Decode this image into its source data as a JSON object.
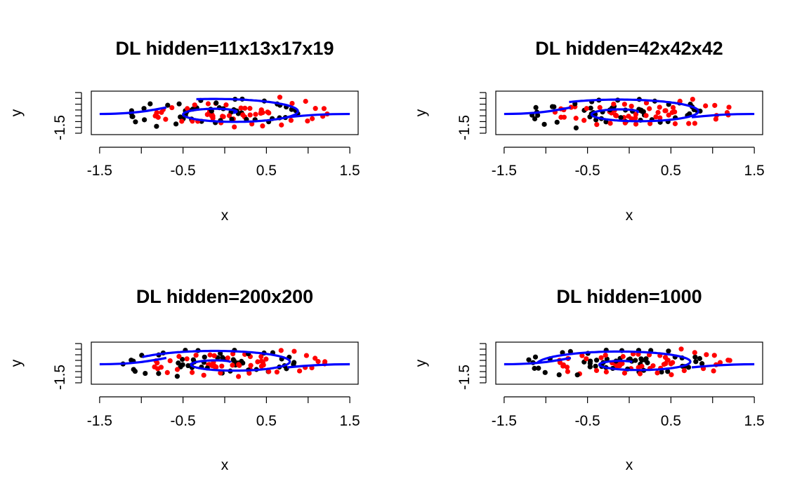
{
  "chart_data": [
    {
      "type": "scatter",
      "title": "DL hidden=11x13x17x19",
      "xlabel": "x",
      "ylabel": "y",
      "xlim": [
        -1.6,
        1.6
      ],
      "ylim": [
        -1.0,
        1.0
      ],
      "x_ticks": [
        "-1.5",
        "-0.5",
        "0.5",
        "1.5"
      ],
      "y_ticks": [
        "-1.5"
      ],
      "grid": false,
      "series": [
        {
          "color": "#000000",
          "marker": "dot"
        },
        {
          "color": "#ff0000",
          "marker": "dot"
        },
        {
          "color": "#0000ff",
          "marker": "line"
        }
      ]
    },
    {
      "type": "scatter",
      "title": "DL hidden=42x42x42",
      "xlabel": "x",
      "ylabel": "y",
      "xlim": [
        -1.6,
        1.6
      ],
      "ylim": [
        -1.0,
        1.0
      ],
      "x_ticks": [
        "-1.5",
        "-0.5",
        "0.5",
        "1.5"
      ],
      "y_ticks": [
        "-1.5"
      ],
      "grid": false,
      "series": [
        {
          "color": "#000000",
          "marker": "dot"
        },
        {
          "color": "#ff0000",
          "marker": "dot"
        },
        {
          "color": "#0000ff",
          "marker": "line"
        }
      ]
    },
    {
      "type": "scatter",
      "title": "DL hidden=200x200",
      "xlabel": "x",
      "ylabel": "y",
      "xlim": [
        -1.6,
        1.6
      ],
      "ylim": [
        -1.0,
        1.0
      ],
      "x_ticks": [
        "-1.5",
        "-0.5",
        "0.5",
        "1.5"
      ],
      "y_ticks": [
        "-1.5"
      ],
      "grid": false,
      "series": [
        {
          "color": "#000000",
          "marker": "dot"
        },
        {
          "color": "#ff0000",
          "marker": "dot"
        },
        {
          "color": "#0000ff",
          "marker": "line"
        }
      ]
    },
    {
      "type": "scatter",
      "title": "DL hidden=1000",
      "xlabel": "x",
      "ylabel": "y",
      "xlim": [
        -1.6,
        1.6
      ],
      "ylim": [
        -1.0,
        1.0
      ],
      "x_ticks": [
        "-1.5",
        "-0.5",
        "0.5",
        "1.5"
      ],
      "y_ticks": [
        "-1.5"
      ],
      "grid": false,
      "series": [
        {
          "color": "#000000",
          "marker": "dot"
        },
        {
          "color": "#ff0000",
          "marker": "dot"
        },
        {
          "color": "#0000ff",
          "marker": "line"
        }
      ]
    }
  ]
}
